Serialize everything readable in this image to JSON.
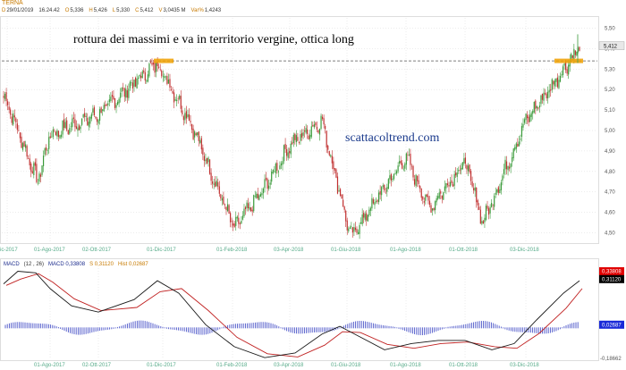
{
  "header": {
    "ticker": "TERNA",
    "quote": [
      {
        "label": "D",
        "value": "29/01/2019"
      },
      {
        "label": "",
        "value": "16.24.42"
      },
      {
        "label": "O",
        "value": "5,336"
      },
      {
        "label": "H",
        "value": "5,426"
      },
      {
        "label": "L",
        "value": "5,330"
      },
      {
        "label": "C",
        "value": "5,412"
      },
      {
        "label": "V",
        "value": "3,0435 M"
      },
      {
        "label": "Var%",
        "value": "1,4243"
      }
    ]
  },
  "annotation": "rottura dei massimi e va in territorio vergine, ottica long",
  "watermark": "scattacoltrend.com",
  "colors": {
    "up": "#3a9a3a",
    "down": "#c03030",
    "grid": "#d8d8d8",
    "macd_line": "#1a1a1a",
    "signal_line": "#c02020",
    "histogram": "#4a55c8",
    "resistance_box": "#f0a000",
    "price_badge_bg": "#e8e8e8"
  },
  "chart_data": [
    {
      "type": "candlestick",
      "title": "",
      "x_tick_labels": [
        "ic-2017",
        "01-Ago-2017",
        "02-Ott-2017",
        "01-Dic-2017",
        "01-Feb-2018",
        "03-Apr-2018",
        "01-Giu-2018",
        "01-Ago-2018",
        "01-Ott-2018",
        "03-Dic-2018"
      ],
      "y_tick_labels": [
        "5,50",
        "5,40",
        "5,30",
        "5,20",
        "5,10",
        "5,00",
        "4,90",
        "4,80",
        "4,70",
        "4,60",
        "4,50"
      ],
      "ylim": [
        4.45,
        5.55
      ],
      "last_price_label": "5,412",
      "resistance_level": 5.34,
      "key_points": [
        {
          "x": "ic-2017",
          "close": 5.16
        },
        {
          "x": "Jul-2017",
          "close": 4.75
        },
        {
          "x": "01-Ago-2017",
          "close": 4.98
        },
        {
          "x": "02-Ott-2017",
          "close": 5.08
        },
        {
          "x": "Nov-2017",
          "close": 5.33
        },
        {
          "x": "01-Dic-2017",
          "close": 5.28
        },
        {
          "x": "Jan-2018",
          "close": 5.05
        },
        {
          "x": "01-Feb-2018",
          "close": 4.52
        },
        {
          "x": "Mar-2018",
          "close": 4.72
        },
        {
          "x": "03-Apr-2018",
          "close": 4.93
        },
        {
          "x": "May-2018",
          "close": 5.05
        },
        {
          "x": "01-Giu-2018",
          "close": 4.48
        },
        {
          "x": "Jul-2018",
          "close": 4.72
        },
        {
          "x": "01-Ago-2018",
          "close": 4.87
        },
        {
          "x": "Sep-2018",
          "close": 4.62
        },
        {
          "x": "01-Ott-2018",
          "close": 4.85
        },
        {
          "x": "Nov-2018",
          "close": 4.55
        },
        {
          "x": "03-Dic-2018",
          "close": 5.05
        },
        {
          "x": "Dec-2018",
          "close": 5.2
        },
        {
          "x": "Jan-2019",
          "close": 5.412
        }
      ]
    },
    {
      "type": "line",
      "title": "MACD",
      "params": "(12 , 26)",
      "legend": [
        {
          "name": "MACD",
          "value": "0,33808"
        },
        {
          "name": "S",
          "value": "0,31120"
        },
        {
          "name": "Hist",
          "value": "0,02687"
        }
      ],
      "right_axis_labels": [
        "0,33808",
        "0,31120",
        "0,02687",
        "-0,18662"
      ],
      "x_tick_labels": [
        "01-Ago-2017",
        "02-Ott-2017",
        "01-Dic-2017",
        "01-Feb-2018",
        "03-Apr-2018",
        "01-Giu-2018",
        "01-Ago-2018",
        "01-Ott-2018",
        "03-Dic-2018"
      ],
      "ylim": [
        -0.2,
        0.38
      ]
    }
  ]
}
